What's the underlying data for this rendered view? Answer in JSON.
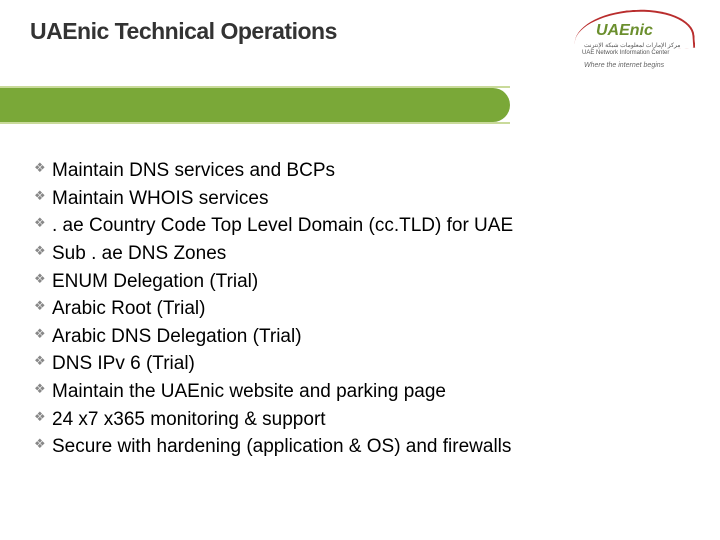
{
  "header": {
    "title": "UAEnic Technical Operations"
  },
  "logo": {
    "brand": "UAEnic",
    "arabic_line": "مركز الإمارات لمعلومات شبكة الإنترنت",
    "english_line": "UAE Network Information Center",
    "tagline": "Where the internet begins",
    "arc_color": "#b92d2d",
    "brand_color": "#6b8f2e"
  },
  "bar": {
    "bg_color": "#7aa838",
    "light_color": "#c9da9a"
  },
  "bullets": {
    "icon_color": "#888888",
    "text_color": "#000000",
    "font_size": 19,
    "items": [
      "Maintain DNS services and BCPs",
      "Maintain WHOIS services",
      ". ae Country Code Top Level Domain (cc.TLD) for UAE",
      "Sub . ae DNS Zones",
      "ENUM  Delegation (Trial)",
      "Arabic Root (Trial)",
      "Arabic DNS Delegation (Trial)",
      "DNS IPv 6 (Trial)",
      "Maintain the UAEnic website and parking page",
      "24 x7 x365 monitoring & support",
      "Secure with hardening (application & OS) and firewalls"
    ]
  }
}
